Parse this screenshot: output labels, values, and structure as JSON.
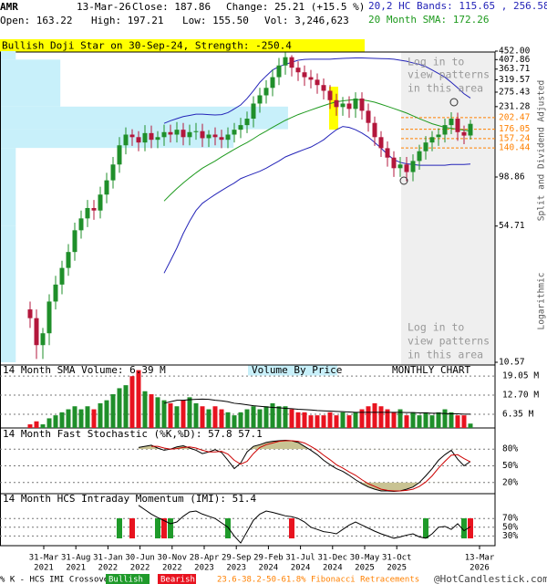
{
  "header": {
    "symbol": "AMR",
    "date": "13-Mar-26",
    "close": "Close: 187.86",
    "change": "Change: 25.21 (+15.5 %)",
    "bands": "20,2 HC Bands: 115.65 , 256.58",
    "open": "Open: 163.22",
    "high": "High: 197.21",
    "low": "Low: 155.50",
    "volume": "Vol: 3,246,623",
    "sma": "20 Month SMA: 172.26",
    "pattern": "Bullish Doji Star on 30-Sep-24, Strength: -250.4"
  },
  "notes": {
    "adjusted": "Split and Dividend Adjusted",
    "scale": "Logarithmic",
    "login_top": [
      "Log in to",
      "view patterns",
      "in this area"
    ],
    "login_bottom": [
      "Log in to",
      "view patterns",
      "in this area"
    ]
  },
  "legend": {
    "crossover": "% K - HCS IMI Crossover:",
    "bullish": "Bullish",
    "bearish": "Bearish",
    "fib": "23.6-38.2-50-61.8% Fibonacci Retracements",
    "site": "@HotCandlestick.com"
  },
  "chart_data": [
    {
      "type": "candlestick",
      "log_scale": true,
      "up_color": "#1f8f2a",
      "down_color": "#b3173c",
      "x_labels": [
        [
          "31-Mar",
          "2021"
        ],
        [
          "31-Aug",
          "2021"
        ],
        [
          "31-Jan",
          "2022"
        ],
        [
          "30-Jun",
          "2022"
        ],
        [
          "30-Nov",
          "2022"
        ],
        [
          "28-Apr",
          "2023"
        ],
        [
          "29-Sep",
          "2023"
        ],
        [
          "29-Feb",
          "2024"
        ],
        [
          "31-Jul",
          "2024"
        ],
        [
          "31-Dec",
          "2024"
        ],
        [
          "30-May",
          "2025"
        ],
        [
          "31-Oct",
          "2025"
        ],
        [
          "13-Mar",
          "2026"
        ]
      ],
      "open": [
        20,
        18,
        13,
        15,
        22,
        27,
        33,
        40,
        52,
        60,
        68,
        66,
        80,
        95,
        115,
        145,
        165,
        160,
        150,
        168,
        155,
        160,
        170,
        165,
        175,
        160,
        170,
        172,
        158,
        165,
        160,
        155,
        165,
        175,
        185,
        200,
        240,
        265,
        290,
        330,
        380,
        420,
        370,
        350,
        330,
        320,
        300,
        280,
        250,
        230,
        240,
        225,
        255,
        220,
        190,
        160,
        140,
        125,
        110,
        115,
        105,
        120,
        135,
        150,
        160,
        165,
        185,
        200,
        170,
        163.22
      ],
      "high": [
        22,
        20,
        16,
        24,
        30,
        36,
        44,
        57,
        66,
        75,
        75,
        88,
        104,
        126,
        160,
        180,
        176,
        172,
        185,
        184,
        172,
        186,
        186,
        192,
        190,
        186,
        190,
        188,
        174,
        180,
        175,
        180,
        190,
        202,
        218,
        262,
        290,
        318,
        362,
        416,
        445,
        430,
        400,
        380,
        360,
        345,
        325,
        300,
        270,
        260,
        262,
        275,
        275,
        240,
        205,
        172,
        152,
        135,
        126,
        126,
        130,
        146,
        162,
        172,
        178,
        200,
        216,
        215,
        184,
        197.21
      ],
      "low": [
        16,
        11,
        11,
        13,
        20,
        24,
        30,
        36,
        47,
        54,
        59,
        60,
        72,
        86,
        104,
        130,
        144,
        135,
        135,
        140,
        140,
        144,
        150,
        150,
        145,
        145,
        155,
        142,
        142,
        145,
        140,
        140,
        150,
        158,
        168,
        180,
        215,
        240,
        262,
        300,
        340,
        333,
        315,
        297,
        288,
        270,
        252,
        225,
        207,
        207,
        202,
        202,
        198,
        171,
        144,
        126,
        112,
        99,
        99,
        94,
        94,
        108,
        122,
        135,
        144,
        150,
        166,
        153,
        147,
        155.5
      ],
      "close": [
        18,
        13,
        15,
        22,
        27,
        33,
        40,
        52,
        60,
        68,
        66,
        80,
        95,
        115,
        145,
        165,
        160,
        150,
        168,
        155,
        160,
        170,
        165,
        175,
        160,
        170,
        172,
        158,
        165,
        160,
        155,
        165,
        175,
        185,
        200,
        240,
        265,
        290,
        330,
        380,
        420,
        370,
        350,
        330,
        320,
        300,
        280,
        250,
        230,
        240,
        225,
        255,
        220,
        190,
        160,
        140,
        125,
        110,
        115,
        105,
        120,
        135,
        150,
        160,
        165,
        185,
        200,
        170,
        163,
        187.86
      ],
      "series": [
        {
          "color": "#2424b8",
          "values": [
            null,
            null,
            null,
            null,
            null,
            null,
            null,
            null,
            null,
            null,
            null,
            null,
            null,
            null,
            null,
            null,
            null,
            null,
            null,
            null,
            null,
            189,
            195,
            200,
            205,
            208,
            211,
            211,
            210,
            209,
            210,
            215,
            225,
            236,
            255,
            280,
            310,
            335,
            360,
            375,
            385,
            395,
            405,
            409,
            410,
            410,
            410,
            410,
            412,
            414,
            415,
            416,
            416,
            415,
            414,
            413,
            412,
            410,
            405,
            400,
            392,
            385,
            375,
            360,
            345,
            330,
            310,
            290,
            270,
            256.58
          ]
        },
        {
          "color": "#2424b8",
          "values": [
            null,
            null,
            null,
            null,
            null,
            null,
            null,
            null,
            null,
            null,
            null,
            null,
            null,
            null,
            null,
            null,
            null,
            null,
            null,
            null,
            null,
            31,
            36,
            42,
            50,
            58,
            66,
            72,
            76,
            80,
            84,
            88,
            92,
            97,
            100,
            103,
            106,
            110,
            115,
            120,
            126,
            130,
            134,
            138,
            142,
            148,
            155,
            165,
            175,
            182,
            180,
            175,
            168,
            160,
            150,
            140,
            130,
            122,
            118,
            116,
            115,
            114,
            114,
            114,
            114,
            114,
            115,
            115,
            115,
            115.65
          ]
        },
        {
          "color": "#1e9a1e",
          "values": [
            null,
            null,
            null,
            null,
            null,
            null,
            null,
            null,
            null,
            null,
            null,
            null,
            null,
            null,
            null,
            null,
            null,
            null,
            null,
            null,
            null,
            74,
            80,
            86,
            92,
            98,
            104,
            110,
            115,
            120,
            126,
            132,
            138,
            144,
            150,
            157,
            165,
            172,
            180,
            188,
            196,
            203,
            210,
            216,
            222,
            228,
            234,
            240,
            245,
            248,
            250,
            252,
            251,
            248,
            244,
            238,
            232,
            226,
            220,
            214,
            207,
            200,
            194,
            188,
            184,
            180,
            178,
            176,
            174,
            172.26
          ]
        }
      ],
      "volume_by_price": {
        "color": "#c8f0fa",
        "xlim": [
          0,
          100
        ],
        "bins": [
          10.57,
          54.71,
          98.86,
          140.44,
          176.05,
          231.28,
          319.57,
          407.86,
          452
        ],
        "volumes": [
          3,
          3,
          3,
          47,
          58,
          12,
          12,
          3
        ]
      },
      "fibonacci": {
        "color": "#ff8000",
        "levels": [
          202.47,
          176.05,
          157.24,
          140.44
        ]
      },
      "ylim": [
        10.57,
        452
      ],
      "yticks": [
        {
          "value": 452,
          "label": "452.00"
        },
        407.86,
        363.71,
        319.57,
        275.43,
        231.28,
        98.86,
        54.71,
        10.57
      ]
    },
    {
      "type": "bar",
      "title": "14 Month SMA Volume: 6.39 M",
      "annotations": [
        "Volume By Price",
        "MONTHLY CHART"
      ],
      "up_color": "#1f8f2a",
      "down_color": "#e8131f",
      "values": [
        3,
        4,
        3,
        5,
        6,
        7,
        8,
        9,
        8,
        9,
        8,
        10,
        11,
        13,
        15,
        16,
        19,
        21,
        14,
        13,
        12,
        11,
        10,
        9,
        11,
        12,
        10,
        9,
        8,
        9,
        8,
        7,
        6,
        7,
        8,
        9,
        8,
        9,
        10,
        9,
        9,
        8,
        7,
        7,
        6,
        6,
        6,
        7,
        6,
        7,
        6,
        7,
        8,
        9,
        10,
        9,
        8,
        7,
        8,
        6,
        7,
        6,
        7,
        6,
        7,
        8,
        7,
        6,
        6,
        3.25
      ],
      "series": [
        {
          "color": "#000000",
          "values": [
            null,
            null,
            null,
            null,
            null,
            null,
            null,
            null,
            null,
            null,
            null,
            null,
            null,
            null,
            null,
            null,
            null,
            null,
            null,
            null,
            null,
            10,
            10.5,
            11,
            11,
            11.2,
            11.3,
            11.4,
            11.3,
            11,
            10.8,
            10.5,
            10,
            9.8,
            9.5,
            9.2,
            9,
            8.8,
            8.6,
            8.5,
            8.3,
            8.2,
            8,
            7.9,
            7.8,
            7.6,
            7.5,
            7.4,
            7.3,
            7.2,
            7.1,
            7,
            7,
            7,
            7,
            7,
            7,
            7,
            7,
            6.9,
            6.9,
            6.8,
            6.8,
            6.7,
            6.7,
            6.6,
            6.5,
            6.5,
            6.4,
            6.39
          ]
        }
      ],
      "ylim": [
        1.8,
        21.8
      ],
      "yticks": [
        {
          "value": 19.05,
          "label": "19.05 M"
        },
        {
          "value": 12.7,
          "label": "12.70 M"
        },
        {
          "value": 6.35,
          "label": "6.35 M"
        }
      ]
    },
    {
      "type": "line",
      "title": "14 Month Fast Stochastic (%K,%D): 57.8  57.1",
      "shade_color": "#c9c393",
      "series": [
        {
          "color": "#000000",
          "values": [
            null,
            null,
            null,
            null,
            null,
            null,
            null,
            null,
            null,
            null,
            null,
            null,
            null,
            null,
            null,
            null,
            null,
            83,
            85,
            87,
            82,
            78,
            80,
            84,
            86,
            82,
            78,
            72,
            75,
            79,
            74,
            60,
            45,
            55,
            75,
            85,
            88,
            92,
            94,
            95,
            96,
            95,
            92,
            85,
            78,
            70,
            60,
            52,
            45,
            40,
            33,
            25,
            18,
            12,
            8,
            5,
            5,
            4,
            5,
            8,
            12,
            20,
            32,
            45,
            60,
            70,
            78,
            62,
            50,
            57.8
          ]
        },
        {
          "color": "#cc0000",
          "values": [
            null,
            null,
            null,
            null,
            null,
            null,
            null,
            null,
            null,
            null,
            null,
            null,
            null,
            null,
            null,
            null,
            null,
            null,
            null,
            85,
            85,
            82,
            80,
            81,
            83,
            84,
            82,
            78,
            75,
            75,
            76,
            71,
            60,
            53,
            58,
            72,
            83,
            88,
            91,
            94,
            95,
            95,
            94,
            91,
            85,
            78,
            69,
            61,
            52,
            46,
            39,
            33,
            25,
            18,
            13,
            8,
            6,
            5,
            5,
            6,
            8,
            13,
            21,
            32,
            46,
            58,
            69,
            70,
            63,
            57.1
          ]
        }
      ],
      "ylim": [
        0,
        100
      ],
      "yticks": [
        {
          "value": 80,
          "label": "80%"
        },
        {
          "value": 50,
          "label": "50%"
        },
        {
          "value": 20,
          "label": "20%"
        }
      ]
    },
    {
      "type": "line",
      "title": "14 Month HCS Intraday Momentum (IMI): 51.4",
      "bullish_color": "#1f9a2a",
      "bearish_color": "#e8131f",
      "bullish": [
        14,
        20,
        22,
        31,
        62,
        68
      ],
      "bearish": [
        16,
        21,
        41,
        69
      ],
      "series": [
        {
          "color": "#000000",
          "values": [
            null,
            null,
            null,
            null,
            null,
            null,
            null,
            null,
            null,
            null,
            null,
            null,
            null,
            null,
            null,
            null,
            null,
            100,
            90,
            80,
            72,
            65,
            58,
            62,
            75,
            85,
            87,
            80,
            75,
            70,
            60,
            50,
            30,
            14,
            40,
            66,
            80,
            87,
            84,
            80,
            76,
            74,
            70,
            62,
            50,
            45,
            40,
            38,
            35,
            45,
            55,
            62,
            55,
            48,
            41,
            35,
            30,
            25,
            28,
            32,
            35,
            28,
            25,
            35,
            50,
            52,
            45,
            58,
            42,
            51.4
          ]
        }
      ],
      "ylim": [
        10,
        110
      ],
      "yticks": [
        {
          "value": 70,
          "label": "70%"
        },
        {
          "value": 50,
          "label": "50%"
        },
        {
          "value": 30,
          "label": "30%"
        }
      ]
    }
  ]
}
